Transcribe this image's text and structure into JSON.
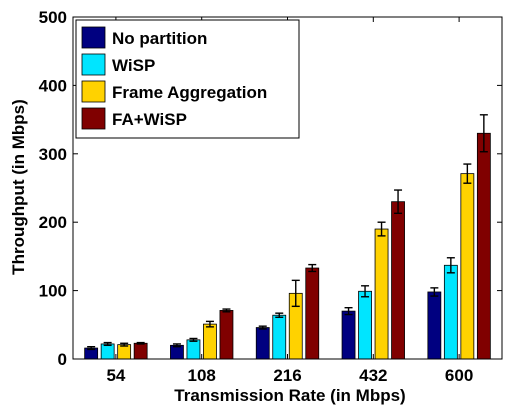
{
  "chart_data": {
    "type": "bar",
    "title": "",
    "xlabel": "Transmission Rate (in Mbps)",
    "ylabel": "Throughput (in Mbps)",
    "categories": [
      "54",
      "108",
      "216",
      "432",
      "600"
    ],
    "ylim": [
      0,
      500
    ],
    "yticks": [
      "0",
      "100",
      "200",
      "300",
      "400",
      "500"
    ],
    "grid": false,
    "legend_position": "top-left",
    "series": [
      {
        "name": "No partition",
        "color": "#000080",
        "values": [
          16,
          20,
          46,
          70,
          98
        ],
        "errors": [
          2,
          2,
          2,
          5,
          6
        ]
      },
      {
        "name": "WiSP",
        "color": "#00E5FF",
        "values": [
          22,
          28,
          64,
          99,
          137
        ],
        "errors": [
          2,
          2,
          3,
          8,
          11
        ]
      },
      {
        "name": "Frame Aggregation",
        "color": "#FFD200",
        "values": [
          21,
          51,
          96,
          190,
          271
        ],
        "errors": [
          2,
          4,
          19,
          10,
          14
        ]
      },
      {
        "name": "FA+WiSP",
        "color": "#800000",
        "values": [
          23,
          71,
          133,
          230,
          330
        ],
        "errors": [
          1,
          2,
          5,
          17,
          27
        ]
      }
    ]
  }
}
